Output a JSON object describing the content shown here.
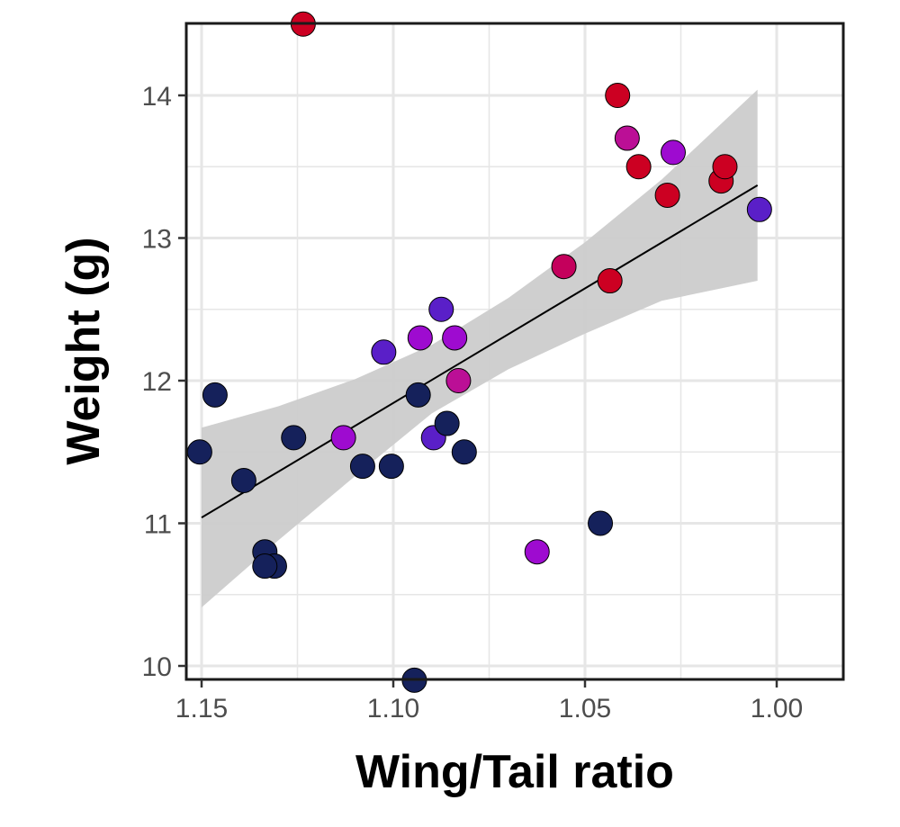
{
  "chart_data": {
    "type": "scatter",
    "title": "",
    "xlabel": "Wing/Tail ratio",
    "ylabel": "Weight (g)",
    "x_reversed": true,
    "xlim": [
      1.151,
      0.983
    ],
    "ylim": [
      9.9,
      14.5
    ],
    "x_ticks": [
      1.15,
      1.1,
      1.05,
      1.0
    ],
    "x_tick_labels": [
      "1.15",
      "1.10",
      "1.05",
      "1.00"
    ],
    "y_ticks": [
      10,
      11,
      12,
      13,
      14
    ],
    "y_tick_labels": [
      "10",
      "11",
      "12",
      "13",
      "14"
    ],
    "grid": true,
    "legend": "none",
    "colors": {
      "navy": "#15215b",
      "indigo": "#5a1fc8",
      "violet": "#9e0bd0",
      "magenta": "#bb0f96",
      "crimson": "#c4005c",
      "red": "#cc0022",
      "band": "#cccccc",
      "trend": "#000000",
      "grid": "#e6e6e6",
      "frame": "#1a1a1a"
    },
    "points": [
      {
        "x": 1.1505,
        "y": 11.5,
        "color": "#15215b"
      },
      {
        "x": 1.1465,
        "y": 11.9,
        "color": "#15215b"
      },
      {
        "x": 1.139,
        "y": 11.3,
        "color": "#15215b"
      },
      {
        "x": 1.1335,
        "y": 10.8,
        "color": "#15215b"
      },
      {
        "x": 1.131,
        "y": 10.7,
        "color": "#15215b"
      },
      {
        "x": 1.1335,
        "y": 10.7,
        "color": "#15215b"
      },
      {
        "x": 1.126,
        "y": 11.6,
        "color": "#15215b"
      },
      {
        "x": 1.1235,
        "y": 14.5,
        "color": "#cc0022"
      },
      {
        "x": 1.113,
        "y": 11.6,
        "color": "#9e0bd0"
      },
      {
        "x": 1.108,
        "y": 11.4,
        "color": "#15215b"
      },
      {
        "x": 1.1025,
        "y": 12.2,
        "color": "#5a1fc8"
      },
      {
        "x": 1.1005,
        "y": 11.4,
        "color": "#15215b"
      },
      {
        "x": 1.0945,
        "y": 9.9,
        "color": "#15215b"
      },
      {
        "x": 1.0935,
        "y": 11.9,
        "color": "#15215b"
      },
      {
        "x": 1.093,
        "y": 12.3,
        "color": "#9e0bd0"
      },
      {
        "x": 1.0895,
        "y": 11.6,
        "color": "#5a1fc8"
      },
      {
        "x": 1.0875,
        "y": 12.5,
        "color": "#5a1fc8"
      },
      {
        "x": 1.086,
        "y": 11.7,
        "color": "#15215b"
      },
      {
        "x": 1.084,
        "y": 12.3,
        "color": "#9e0bd0"
      },
      {
        "x": 1.083,
        "y": 12.0,
        "color": "#bb0f96"
      },
      {
        "x": 1.0815,
        "y": 11.5,
        "color": "#15215b"
      },
      {
        "x": 1.0625,
        "y": 10.8,
        "color": "#9e0bd0"
      },
      {
        "x": 1.0555,
        "y": 12.8,
        "color": "#c4005c"
      },
      {
        "x": 1.046,
        "y": 11.0,
        "color": "#15215b"
      },
      {
        "x": 1.0435,
        "y": 12.7,
        "color": "#cc0022"
      },
      {
        "x": 1.0415,
        "y": 14.0,
        "color": "#cc0022"
      },
      {
        "x": 1.039,
        "y": 13.7,
        "color": "#bb0f96"
      },
      {
        "x": 1.036,
        "y": 13.5,
        "color": "#cc0022"
      },
      {
        "x": 1.0285,
        "y": 13.3,
        "color": "#cc0022"
      },
      {
        "x": 1.027,
        "y": 13.6,
        "color": "#9e0bd0"
      },
      {
        "x": 1.0145,
        "y": 13.4,
        "color": "#cc0022"
      },
      {
        "x": 1.0135,
        "y": 13.5,
        "color": "#cc0022"
      },
      {
        "x": 1.0045,
        "y": 13.2,
        "color": "#5a1fc8"
      }
    ],
    "trend_line": {
      "x": [
        1.15,
        1.005
      ],
      "y": [
        11.04,
        13.37
      ]
    },
    "confidence_band": {
      "x": [
        1.15,
        1.13,
        1.11,
        1.09,
        1.07,
        1.05,
        1.03,
        1.005
      ],
      "upper": [
        11.67,
        11.82,
        12.01,
        12.25,
        12.58,
        12.97,
        13.41,
        14.04
      ],
      "lower": [
        10.41,
        10.88,
        11.33,
        11.77,
        12.08,
        12.33,
        12.56,
        12.7
      ]
    }
  }
}
